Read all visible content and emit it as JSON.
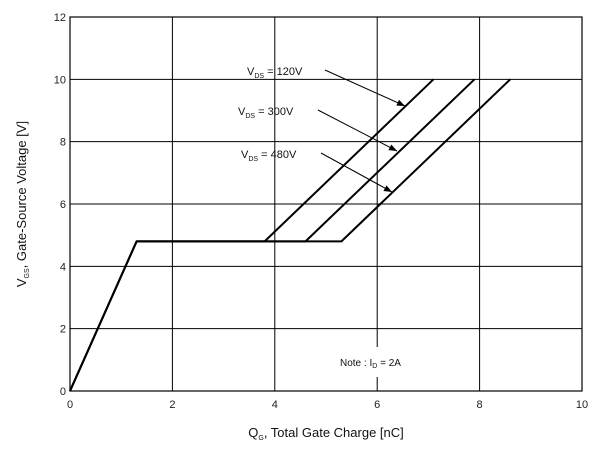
{
  "chart_data": {
    "type": "line",
    "xlabel": {
      "main": "Q",
      "sub": "G",
      "rest": ", Total Gate Charge [nC]"
    },
    "ylabel": {
      "main": "V",
      "sub": "GS",
      "rest": ", Gate-Source Voltage [V]"
    },
    "xlim": [
      0,
      10
    ],
    "ylim": [
      0,
      12
    ],
    "xticks": [
      "0",
      "2",
      "4",
      "6",
      "8",
      "10"
    ],
    "yticks": [
      "0",
      "2",
      "4",
      "6",
      "8",
      "10",
      "12"
    ],
    "grid": true,
    "series": [
      {
        "name": "120V",
        "x": [
          0,
          1.3,
          3.8,
          7.1
        ],
        "y": [
          0,
          4.8,
          4.8,
          10
        ]
      },
      {
        "name": "300V",
        "x": [
          0,
          1.3,
          4.6,
          7.9
        ],
        "y": [
          0,
          4.8,
          4.8,
          10
        ]
      },
      {
        "name": "480V",
        "x": [
          0,
          1.3,
          5.3,
          8.6
        ],
        "y": [
          0,
          4.8,
          4.8,
          10
        ]
      }
    ],
    "annotations": [
      {
        "main": "V",
        "sub": "DS",
        "rest": " = 120V"
      },
      {
        "main": "V",
        "sub": "DS",
        "rest": " = 300V"
      },
      {
        "main": "V",
        "sub": "DS",
        "rest": " = 480V"
      }
    ],
    "note": {
      "prefix": "Note : I",
      "sub": "D",
      "rest": " = 2A"
    }
  }
}
